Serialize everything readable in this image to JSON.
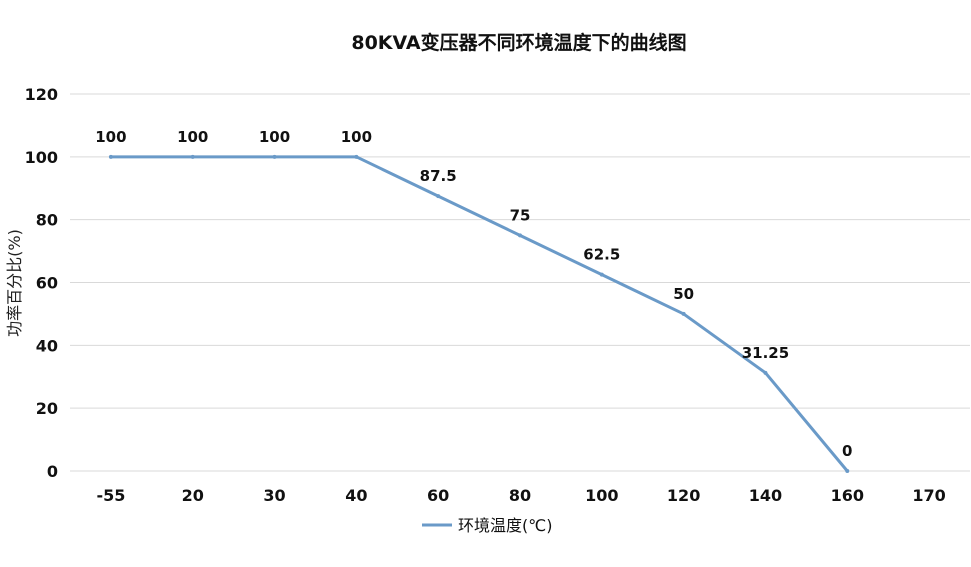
{
  "chart_data": {
    "type": "line",
    "title": "80KVA变压器不同环境温度下的曲线图",
    "xlabel": "",
    "ylabel": "功率百分比(%)",
    "categories": [
      "-55",
      "20",
      "30",
      "40",
      "60",
      "80",
      "100",
      "120",
      "140",
      "160",
      "170"
    ],
    "series": [
      {
        "name": "环境温度(℃)",
        "values": [
          100,
          100,
          100,
          100,
          87.5,
          75,
          62.5,
          50,
          31.25,
          0,
          null
        ],
        "color": "#6a9ac8"
      }
    ],
    "data_labels": [
      "100",
      "100",
      "100",
      "100",
      "87.5",
      "75",
      "62.5",
      "50",
      "31.25",
      "0",
      ""
    ],
    "ylim": [
      0,
      120
    ],
    "yticks": [
      "0",
      "20",
      "40",
      "60",
      "80",
      "100",
      "120"
    ],
    "grid": "horizontal",
    "legend_position": "bottom"
  }
}
